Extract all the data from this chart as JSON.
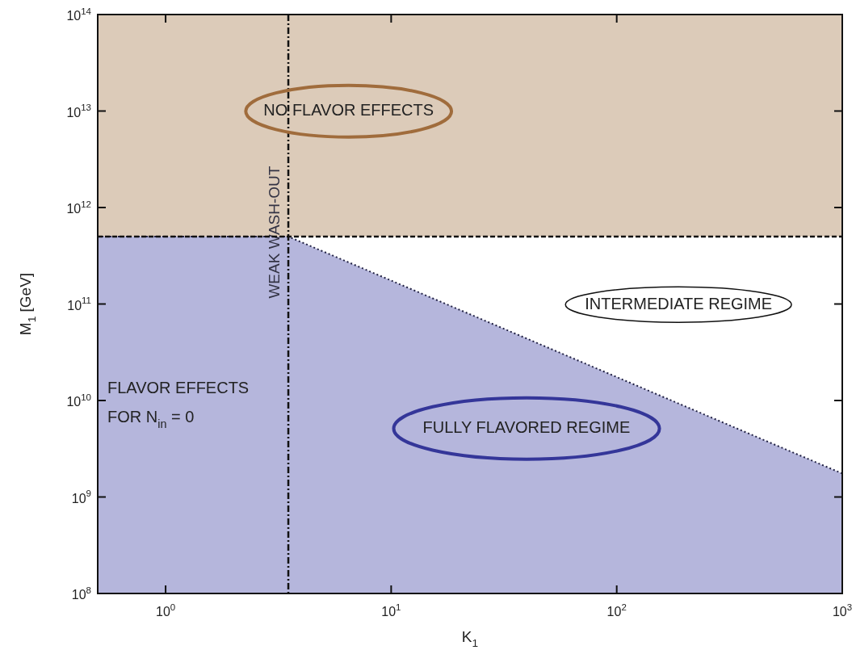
{
  "chart_data": {
    "type": "area",
    "xlabel": "K$_{1}$",
    "ylabel": "M$_{1}$ [GeV]",
    "log": "xy",
    "grid": false,
    "legend": false,
    "xlim": [
      0.5,
      1000
    ],
    "ylim": [
      100000000.0,
      100000000000000.0
    ],
    "xticks": [
      {
        "value": 1,
        "label": "10$^{0}$"
      },
      {
        "value": 10,
        "label": "10$^{1}$"
      },
      {
        "value": 100,
        "label": "10$^{2}$"
      },
      {
        "value": 1000,
        "label": "10$^{3}$"
      }
    ],
    "yticks": [
      {
        "value": 100000000.0,
        "label": "10$^{8}$"
      },
      {
        "value": 1000000000.0,
        "label": "10$^{9}$"
      },
      {
        "value": 10000000000.0,
        "label": "10$^{10}$"
      },
      {
        "value": 100000000000.0,
        "label": "10$^{11}$"
      },
      {
        "value": 1000000000000.0,
        "label": "10$^{12}$"
      },
      {
        "value": 10000000000000.0,
        "label": "10$^{13}$"
      },
      {
        "value": 100000000000000.0,
        "label": "10$^{14}$"
      }
    ],
    "series": [
      {
        "color": "#b5b6dc",
        "x": [
          0.5,
          3.5,
          1000
        ],
        "values": [
          500000000000.0,
          500000000000.0,
          1750000000.0
        ],
        "line_style": "dotted"
      }
    ],
    "bands": [
      {
        "axis": "y",
        "from": 500000000000.0,
        "to": 100000000000000.0,
        "color": "#dccbb9"
      }
    ],
    "ref_lines": [
      {
        "axis": "x",
        "value": 3.5,
        "label": "WEAK WASH-OUT",
        "line_style": "dashed"
      },
      {
        "axis": "y",
        "value": 500000000000.0,
        "line_style": "dashed"
      }
    ],
    "annotations": [
      "NO FLAVOR EFFECTS",
      "INTERMEDIATE REGIME",
      "FULLY FLAVORED REGIME",
      "FLAVOR EFFECTS\nFOR N$_{in}$ = 0"
    ]
  }
}
